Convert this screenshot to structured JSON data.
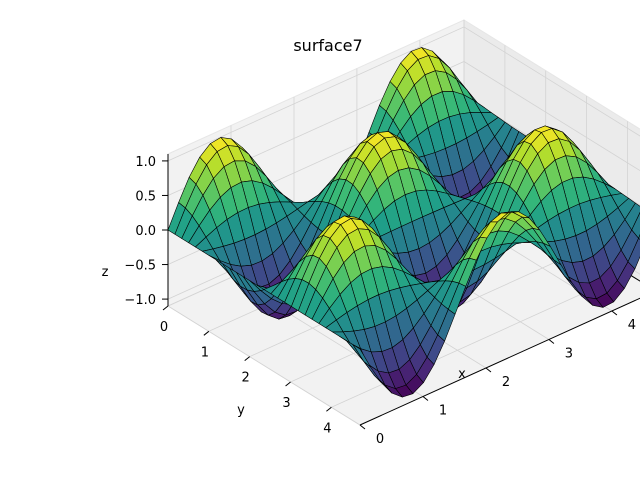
{
  "chart_data": {
    "type": "surface3d",
    "title": "surface7",
    "xlabel": "x",
    "ylabel": "y",
    "zlabel": "z",
    "xlim": [
      0,
      4.7
    ],
    "ylim": [
      0,
      4.7
    ],
    "zlim": [
      -1.1,
      1.1
    ],
    "xticks": [
      "0",
      "1",
      "2",
      "3",
      "4"
    ],
    "yticks": [
      "0",
      "1",
      "2",
      "3",
      "4"
    ],
    "zticks": [
      "−1.0",
      "−0.5",
      "0.0",
      "0.5",
      "1.0"
    ],
    "zticks_values": [
      -1.0,
      -0.5,
      0.0,
      0.5,
      1.0
    ],
    "ticks_values": [
      0,
      1,
      2,
      3,
      4
    ],
    "grid": true,
    "colormap": "viridis",
    "surface": {
      "function": "z = sin(2x) * cos(2y)-like undulating sheet",
      "x_range": [
        0,
        4.7
      ],
      "y_range": [
        0,
        4.7
      ],
      "n": 28,
      "z_min": -1.0,
      "z_max": 1.0
    }
  }
}
